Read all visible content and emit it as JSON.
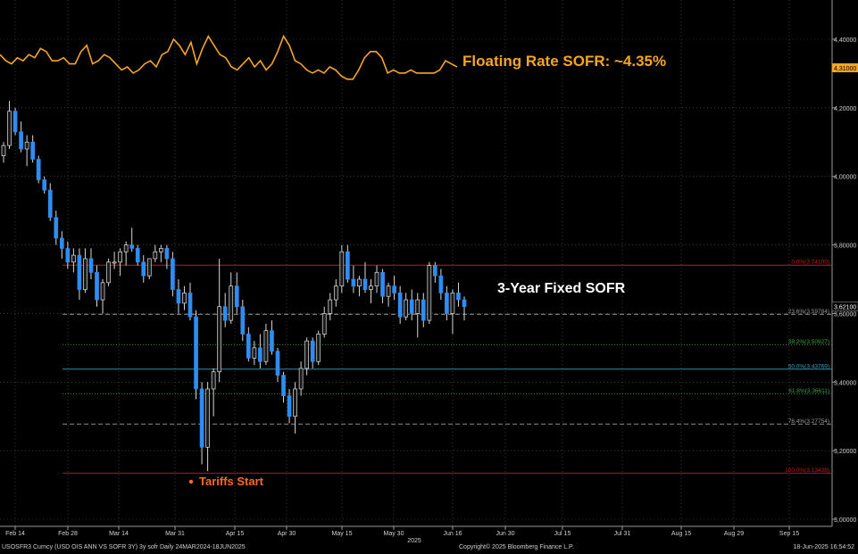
{
  "chart_data": {
    "type": "candlestick",
    "y_axis": {
      "side": "right",
      "min": 3.0,
      "max": 4.4,
      "ticks": [
        "3,00000",
        "3,20000",
        "3,40000",
        "3,60000",
        "3,80000",
        "4,00000",
        "4,20000",
        "4,40000"
      ]
    },
    "x_ticks": [
      "Feb 14",
      "Feb 28",
      "Mar 14",
      "Mar 31",
      "Apr 15",
      "Apr 30",
      "May 15",
      "May 30",
      "Jun 16",
      "Jun 30",
      "Jul 15",
      "Jul 31",
      "Aug 15",
      "Aug 29",
      "Sep 15"
    ],
    "year_label": "2025",
    "annotations": {
      "floating_label": "Floating Rate SOFR: ~4.35%",
      "fixed_label": "3-Year Fixed SOFR",
      "tariffs_label": "Tariffs Start"
    },
    "last_values": {
      "sofr_3y": "3,62100",
      "floating": "4,31000"
    },
    "fib_levels": [
      {
        "label": "0.0%(3.74100)",
        "value": 3.741,
        "color": "#d01818",
        "style": "solid"
      },
      {
        "label": "23.6%(3.59784)",
        "value": 3.59784,
        "color": "#9a9a9a",
        "style": "dash"
      },
      {
        "label": "38.2%(3.50927)",
        "value": 3.50927,
        "color": "#33a833",
        "style": "dot"
      },
      {
        "label": "50.0%(3.43769)",
        "value": 3.43769,
        "color": "#3aa0c8",
        "style": "solid"
      },
      {
        "label": "61.8%(3.36611)",
        "value": 3.36611,
        "color": "#33a833",
        "style": "dot"
      },
      {
        "label": "76.4%(3.27754)",
        "value": 3.27754,
        "color": "#9a9a9a",
        "style": "dash"
      },
      {
        "label": "100.0%(3.13438)",
        "value": 3.13438,
        "color": "#d01818",
        "style": "solid"
      }
    ],
    "candles": [
      [
        4.06,
        4.1,
        4.04,
        4.09
      ],
      [
        4.09,
        4.22,
        4.08,
        4.19
      ],
      [
        4.19,
        4.2,
        4.12,
        4.13
      ],
      [
        4.13,
        4.16,
        4.07,
        4.08
      ],
      [
        4.08,
        4.12,
        4.03,
        4.1
      ],
      [
        4.1,
        4.12,
        4.04,
        4.05
      ],
      [
        4.05,
        4.06,
        3.98,
        3.99
      ],
      [
        3.99,
        4.0,
        3.95,
        3.96
      ],
      [
        3.96,
        3.98,
        3.87,
        3.88
      ],
      [
        3.88,
        3.9,
        3.8,
        3.82
      ],
      [
        3.82,
        3.84,
        3.76,
        3.79
      ],
      [
        3.79,
        3.81,
        3.73,
        3.75
      ],
      [
        3.75,
        3.79,
        3.72,
        3.77
      ],
      [
        3.77,
        3.79,
        3.64,
        3.67
      ],
      [
        3.67,
        3.79,
        3.66,
        3.76
      ],
      [
        3.76,
        3.79,
        3.7,
        3.72
      ],
      [
        3.72,
        3.74,
        3.62,
        3.64
      ],
      [
        3.64,
        3.7,
        3.6,
        3.69
      ],
      [
        3.69,
        3.76,
        3.68,
        3.75
      ],
      [
        3.75,
        3.78,
        3.73,
        3.75
      ],
      [
        3.75,
        3.79,
        3.71,
        3.78
      ],
      [
        3.78,
        3.81,
        3.74,
        3.8
      ],
      [
        3.8,
        3.85,
        3.78,
        3.79
      ],
      [
        3.79,
        3.8,
        3.74,
        3.75
      ],
      [
        3.75,
        3.77,
        3.69,
        3.71
      ],
      [
        3.71,
        3.76,
        3.7,
        3.76
      ],
      [
        3.76,
        3.8,
        3.75,
        3.78
      ],
      [
        3.78,
        3.8,
        3.75,
        3.79
      ],
      [
        3.79,
        3.8,
        3.73,
        3.76
      ],
      [
        3.76,
        3.78,
        3.65,
        3.67
      ],
      [
        3.67,
        3.7,
        3.6,
        3.63
      ],
      [
        3.63,
        3.68,
        3.61,
        3.66
      ],
      [
        3.66,
        3.69,
        3.58,
        3.59
      ],
      [
        3.59,
        3.61,
        3.35,
        3.38
      ],
      [
        3.38,
        3.4,
        3.16,
        3.21
      ],
      [
        3.21,
        3.4,
        3.14,
        3.38
      ],
      [
        3.38,
        3.44,
        3.3,
        3.43
      ],
      [
        3.43,
        3.76,
        3.4,
        3.62
      ],
      [
        3.62,
        3.66,
        3.56,
        3.58
      ],
      [
        3.58,
        3.72,
        3.57,
        3.68
      ],
      [
        3.68,
        3.72,
        3.6,
        3.62
      ],
      [
        3.62,
        3.64,
        3.52,
        3.54
      ],
      [
        3.54,
        3.56,
        3.46,
        3.47
      ],
      [
        3.47,
        3.52,
        3.45,
        3.5
      ],
      [
        3.5,
        3.54,
        3.44,
        3.46
      ],
      [
        3.46,
        3.57,
        3.45,
        3.55
      ],
      [
        3.55,
        3.58,
        3.48,
        3.49
      ],
      [
        3.49,
        3.5,
        3.4,
        3.42
      ],
      [
        3.42,
        3.43,
        3.34,
        3.36
      ],
      [
        3.36,
        3.38,
        3.28,
        3.3
      ],
      [
        3.3,
        3.4,
        3.25,
        3.38
      ],
      [
        3.38,
        3.46,
        3.36,
        3.44
      ],
      [
        3.44,
        3.53,
        3.42,
        3.52
      ],
      [
        3.52,
        3.53,
        3.44,
        3.46
      ],
      [
        3.46,
        3.55,
        3.45,
        3.54
      ],
      [
        3.54,
        3.62,
        3.53,
        3.6
      ],
      [
        3.6,
        3.66,
        3.58,
        3.64
      ],
      [
        3.64,
        3.7,
        3.62,
        3.68
      ],
      [
        3.68,
        3.8,
        3.66,
        3.78
      ],
      [
        3.78,
        3.8,
        3.69,
        3.7
      ],
      [
        3.7,
        3.74,
        3.66,
        3.68
      ],
      [
        3.68,
        3.71,
        3.65,
        3.7
      ],
      [
        3.7,
        3.75,
        3.66,
        3.67
      ],
      [
        3.67,
        3.7,
        3.63,
        3.68
      ],
      [
        3.68,
        3.74,
        3.66,
        3.72
      ],
      [
        3.72,
        3.73,
        3.63,
        3.65
      ],
      [
        3.65,
        3.69,
        3.62,
        3.68
      ],
      [
        3.68,
        3.71,
        3.64,
        3.66
      ],
      [
        3.66,
        3.68,
        3.57,
        3.59
      ],
      [
        3.59,
        3.66,
        3.58,
        3.64
      ],
      [
        3.64,
        3.67,
        3.58,
        3.6
      ],
      [
        3.6,
        3.66,
        3.53,
        3.64
      ],
      [
        3.64,
        3.66,
        3.56,
        3.58
      ],
      [
        3.58,
        3.75,
        3.57,
        3.74
      ],
      [
        3.74,
        3.75,
        3.69,
        3.71
      ],
      [
        3.71,
        3.73,
        3.64,
        3.66
      ],
      [
        3.66,
        3.68,
        3.58,
        3.6
      ],
      [
        3.6,
        3.67,
        3.54,
        3.66
      ],
      [
        3.66,
        3.69,
        3.62,
        3.64
      ],
      [
        3.64,
        3.65,
        3.58,
        3.62
      ]
    ],
    "floating_series": [
      4.35,
      4.33,
      4.32,
      4.34,
      4.33,
      4.35,
      4.34,
      4.37,
      4.36,
      4.33,
      4.33,
      4.34,
      4.32,
      4.32,
      4.36,
      4.38,
      4.32,
      4.33,
      4.35,
      4.34,
      4.32,
      4.3,
      4.31,
      4.29,
      4.3,
      4.32,
      4.33,
      4.31,
      4.35,
      4.36,
      4.4,
      4.38,
      4.35,
      4.39,
      4.32,
      4.37,
      4.41,
      4.38,
      4.35,
      4.34,
      4.31,
      4.3,
      4.32,
      4.34,
      4.31,
      4.33,
      4.3,
      4.32,
      4.36,
      4.41,
      4.38,
      4.33,
      4.32,
      4.3,
      4.29,
      4.3,
      4.29,
      4.31,
      4.3,
      4.28,
      4.27,
      4.27,
      4.3,
      4.34,
      4.36,
      4.36,
      4.34,
      4.29,
      4.3,
      4.29,
      4.29,
      4.3,
      4.29,
      4.29,
      4.29,
      4.29,
      4.3,
      4.33,
      4.32,
      4.31
    ]
  },
  "footer": {
    "left": "USOSFR3 Curncy (USD OIS  ANN VS SOFR 3Y) 3y sofr  Daily 24MAR2024-18JUN2025",
    "center": "Copyright© 2025 Bloomberg Finance L.P.",
    "right": "18-Jun-2025 16:54:52"
  },
  "colors": {
    "up": "#2f8cf0",
    "down": "#2f8cf0",
    "wick": "#d8d8d8",
    "floating": "#f5a623",
    "grid": "#5a5a5a",
    "axis_text": "#d0d0d0",
    "fixed_label": "#ffffff",
    "tariffs": "#ff6a20"
  }
}
